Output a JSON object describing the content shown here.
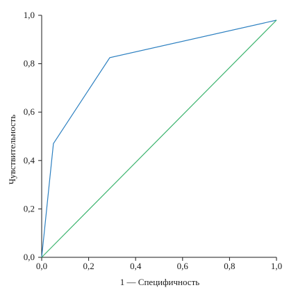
{
  "chart_data": {
    "type": "line",
    "xlabel": "1 — Специфичность",
    "ylabel": "Чувствительность",
    "xlim": [
      0,
      1
    ],
    "ylim": [
      0,
      1
    ],
    "x_ticks": [
      "0,0",
      "0,2",
      "0,4",
      "0,6",
      "0,8",
      "1,0"
    ],
    "y_ticks": [
      "0,0",
      "0,2",
      "0,4",
      "0,6",
      "0,8",
      "1,0"
    ],
    "grid": false,
    "series": [
      {
        "color": "#2b7fc0",
        "points": [
          [
            0.0,
            0.0
          ],
          [
            0.05,
            0.47
          ],
          [
            0.29,
            0.825
          ],
          [
            1.0,
            0.98
          ]
        ]
      },
      {
        "color": "#3cb46e",
        "points": [
          [
            0.0,
            0.0
          ],
          [
            1.0,
            0.98
          ]
        ]
      }
    ]
  }
}
